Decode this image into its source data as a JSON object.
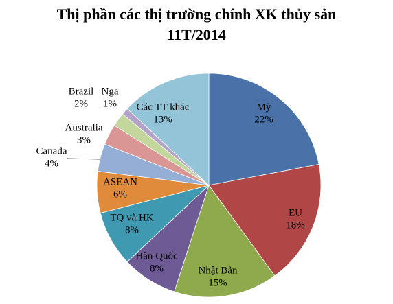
{
  "chart_data": {
    "type": "pie",
    "title": "Thị phần các thị trường chính XK thủy sản 11T/2014",
    "categories": [
      "Mỹ",
      "EU",
      "Nhật Bản",
      "Hàn Quốc",
      "TQ và HK",
      "ASEAN",
      "Canada",
      "Australia",
      "Brazil",
      "Nga",
      "Các TT  khác"
    ],
    "values": [
      22,
      18,
      15,
      8,
      8,
      6,
      4,
      3,
      2,
      1,
      13
    ],
    "value_labels": [
      "22%",
      "18%",
      "15%",
      "8%",
      "8%",
      "6%",
      "4%",
      "3%",
      "2%",
      "1%",
      "13%"
    ],
    "colors": [
      "#4a72a8",
      "#b04646",
      "#8eaa4c",
      "#6e5a94",
      "#3f9ab1",
      "#e08a3b",
      "#95aed6",
      "#d99694",
      "#c3d69c",
      "#b3a3c8",
      "#94c4d8"
    ]
  }
}
